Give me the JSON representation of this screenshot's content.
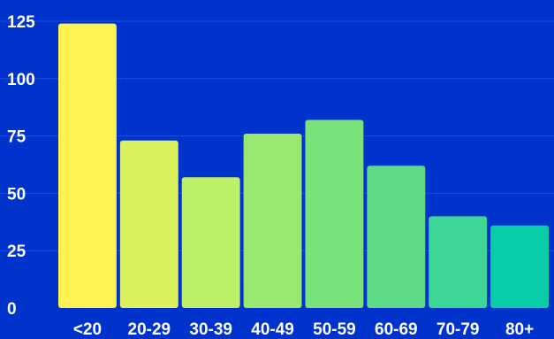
{
  "chart_data": {
    "type": "bar",
    "categories": [
      "<20",
      "20-29",
      "30-39",
      "40-49",
      "50-59",
      "60-69",
      "70-79",
      "80+"
    ],
    "values": [
      124,
      73,
      57,
      76,
      82,
      62,
      40,
      36
    ],
    "title": "",
    "xlabel": "",
    "ylabel": "",
    "ylim": [
      0,
      125
    ],
    "yticks": [
      0,
      25,
      50,
      75,
      100,
      125
    ],
    "grid": true,
    "colors": [
      "#fdf24f",
      "#dbf15e",
      "#bdef68",
      "#99e872",
      "#7ae27a",
      "#5ddb86",
      "#3dd696",
      "#08cda7"
    ],
    "background": "#0033cc",
    "gridline_color": "#1f4fe0",
    "label_color": "#ffffff"
  }
}
